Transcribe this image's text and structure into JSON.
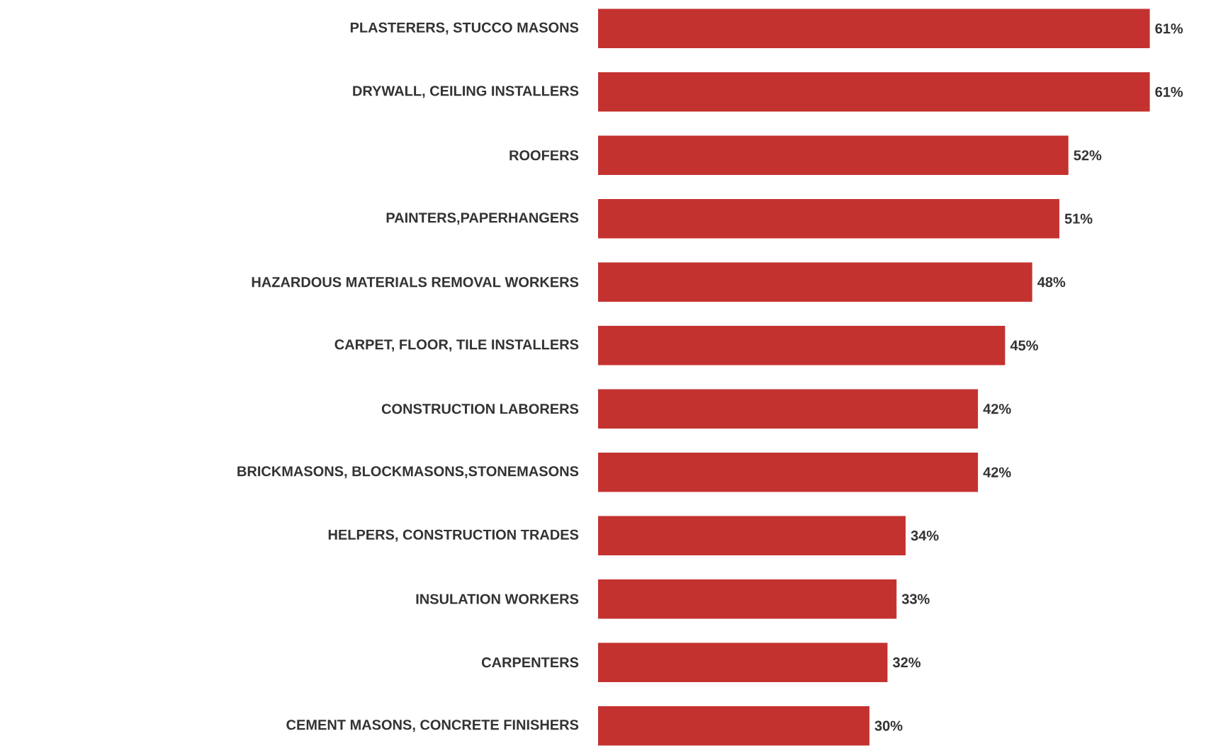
{
  "chart_data": {
    "type": "bar",
    "orientation": "horizontal",
    "color": "#c3322f",
    "categories": [
      "PLASTERERS, STUCCO MASONS",
      "DRYWALL, CEILING INSTALLERS",
      "ROOFERS",
      "PAINTERS,PAPERHANGERS",
      "HAZARDOUS MATERIALS REMOVAL WORKERS",
      "CARPET, FLOOR, TILE INSTALLERS",
      "CONSTRUCTION LABORERS",
      "BRICKMASONS, BLOCKMASONS,STONEMASONS",
      "HELPERS, CONSTRUCTION TRADES",
      "INSULATION WORKERS",
      "CARPENTERS",
      "CEMENT MASONS, CONCRETE FINISHERS"
    ],
    "values": [
      61,
      61,
      52,
      51,
      48,
      45,
      42,
      42,
      34,
      33,
      32,
      30
    ],
    "value_labels": [
      "61%",
      "61%",
      "52%",
      "51%",
      "48%",
      "45%",
      "42%",
      "42%",
      "34%",
      "33%",
      "32%",
      "30%"
    ]
  }
}
